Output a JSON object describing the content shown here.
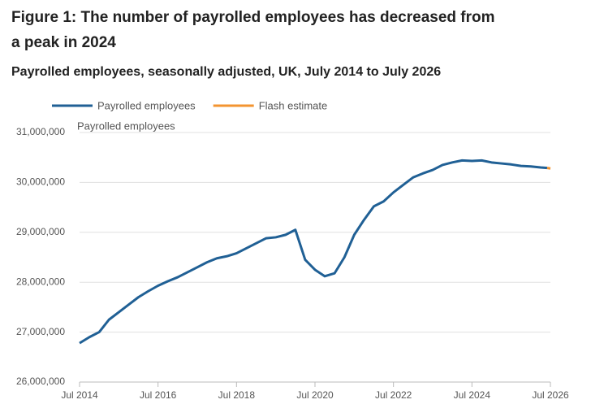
{
  "chart_data": {
    "type": "line",
    "title": "Figure 1: The number of payrolled employees has decreased from a peak in 2024",
    "subtitle": "Payrolled employees, seasonally adjusted, UK, July 2014 to July 2026",
    "y_label": "Payrolled employees",
    "x": [
      "2014-07",
      "2014-10",
      "2015-01",
      "2015-04",
      "2015-07",
      "2015-10",
      "2016-01",
      "2016-04",
      "2016-07",
      "2016-10",
      "2017-01",
      "2017-04",
      "2017-07",
      "2017-10",
      "2018-01",
      "2018-04",
      "2018-07",
      "2018-10",
      "2019-01",
      "2019-04",
      "2019-07",
      "2019-10",
      "2020-01",
      "2020-04",
      "2020-07",
      "2020-10",
      "2021-01",
      "2021-04",
      "2021-07",
      "2021-10",
      "2022-01",
      "2022-04",
      "2022-07",
      "2022-10",
      "2023-01",
      "2023-04",
      "2023-07",
      "2023-10",
      "2024-01",
      "2024-04",
      "2024-07",
      "2024-10",
      "2025-01",
      "2025-04",
      "2025-07",
      "2025-10",
      "2026-01",
      "2026-04",
      "2026-06",
      "2026-07"
    ],
    "series": [
      {
        "name": "Payrolled employees",
        "color": "#206095",
        "values": [
          26780000,
          26900000,
          27000000,
          27250000,
          27400000,
          27550000,
          27700000,
          27820000,
          27930000,
          28020000,
          28100000,
          28200000,
          28300000,
          28400000,
          28480000,
          28520000,
          28580000,
          28680000,
          28780000,
          28880000,
          28900000,
          28950000,
          29050000,
          28450000,
          28250000,
          28120000,
          28180000,
          28500000,
          28950000,
          29250000,
          29520000,
          29620000,
          29800000,
          29950000,
          30100000,
          30180000,
          30250000,
          30350000,
          30400000,
          30440000,
          30430000,
          30440000,
          30400000,
          30380000,
          30360000,
          30330000,
          30320000,
          30300000,
          30290000,
          null
        ]
      },
      {
        "name": "Flash estimate",
        "color": "#f39431",
        "values": [
          null,
          null,
          null,
          null,
          null,
          null,
          null,
          null,
          null,
          null,
          null,
          null,
          null,
          null,
          null,
          null,
          null,
          null,
          null,
          null,
          null,
          null,
          null,
          null,
          null,
          null,
          null,
          null,
          null,
          null,
          null,
          null,
          null,
          null,
          null,
          null,
          null,
          null,
          null,
          null,
          null,
          null,
          null,
          null,
          null,
          null,
          null,
          null,
          30290000,
          30280000
        ]
      }
    ],
    "xlim": [
      "2014-07",
      "2026-07"
    ],
    "xticks": [
      {
        "value": "2014-07",
        "label": "Jul 2014"
      },
      {
        "value": "2016-07",
        "label": "Jul 2016"
      },
      {
        "value": "2018-07",
        "label": "Jul 2018"
      },
      {
        "value": "2020-07",
        "label": "Jul 2020"
      },
      {
        "value": "2022-07",
        "label": "Jul 2022"
      },
      {
        "value": "2024-07",
        "label": "Jul 2024"
      },
      {
        "value": "2026-07",
        "label": "Jul 2026"
      }
    ],
    "ylim": [
      26000000,
      31000000
    ],
    "yticks": [
      {
        "value": 26000000,
        "label": "26,000,000"
      },
      {
        "value": 27000000,
        "label": "27,000,000"
      },
      {
        "value": 28000000,
        "label": "28,000,000"
      },
      {
        "value": 29000000,
        "label": "29,000,000"
      },
      {
        "value": 30000000,
        "label": "30,000,000"
      },
      {
        "value": 31000000,
        "label": "31,000,000"
      }
    ],
    "grid": true,
    "legend": "top"
  }
}
